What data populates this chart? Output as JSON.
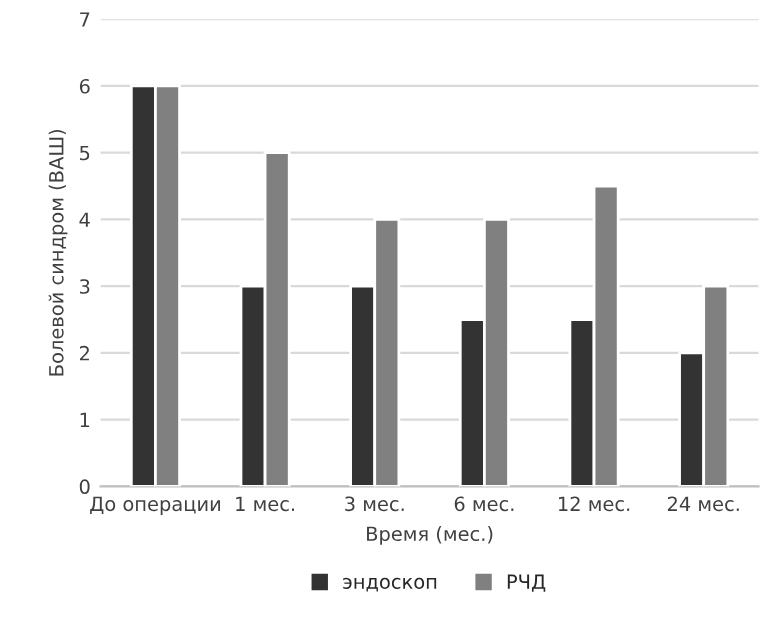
{
  "chart_data": {
    "type": "bar",
    "xlabel": "Время (мес.)",
    "ylabel": "Болевой синдром (ВАШ)",
    "categories": [
      "До операции",
      "1 мес.",
      "3 мес.",
      "6 мес.",
      "12 мес.",
      "24 мес."
    ],
    "series": [
      {
        "name": "эндоскоп",
        "color": "#333333",
        "values": [
          6,
          3,
          3,
          2.5,
          2.5,
          2
        ]
      },
      {
        "name": "РЧД",
        "color": "#808080",
        "values": [
          6,
          5,
          4,
          4,
          4.5,
          3
        ]
      }
    ],
    "ylim": [
      0,
      7
    ],
    "yticks": [
      0,
      1,
      2,
      3,
      4,
      5,
      6,
      7
    ],
    "grid": "y",
    "legend": "bottom"
  }
}
